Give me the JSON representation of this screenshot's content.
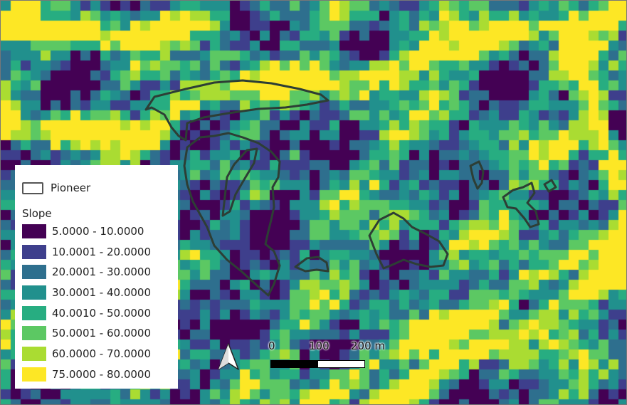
{
  "map": {
    "colors": {
      "class_colors": [
        "#440154",
        "#3e3f8c",
        "#2e6f8e",
        "#21908d",
        "#27ad81",
        "#5cc863",
        "#aadc32",
        "#fde725"
      ],
      "polygon_outline": "#2d3e35"
    }
  },
  "legend": {
    "polygon_label": "Pioneer",
    "raster_title": "Slope",
    "classes": [
      {
        "label": "5.0000 - 10.0000",
        "color": "#440154"
      },
      {
        "label": "10.0001 - 20.0000",
        "color": "#3e3f8c"
      },
      {
        "label": "20.0001 - 30.0000",
        "color": "#2e6f8e"
      },
      {
        "label": "30.0001 - 40.0000",
        "color": "#21908d"
      },
      {
        "label": "40.0010 - 50.0000",
        "color": "#27ad81"
      },
      {
        "label": "50.0001 - 60.0000",
        "color": "#5cc863"
      },
      {
        "label": "60.0000 - 70.0000",
        "color": "#aadc32"
      },
      {
        "label": "75.0000 - 80.0000",
        "color": "#fde725"
      }
    ]
  },
  "scalebar": {
    "labels": [
      "0",
      "100",
      "200 m"
    ]
  },
  "north_arrow": {
    "icon": "north-arrow-icon"
  }
}
